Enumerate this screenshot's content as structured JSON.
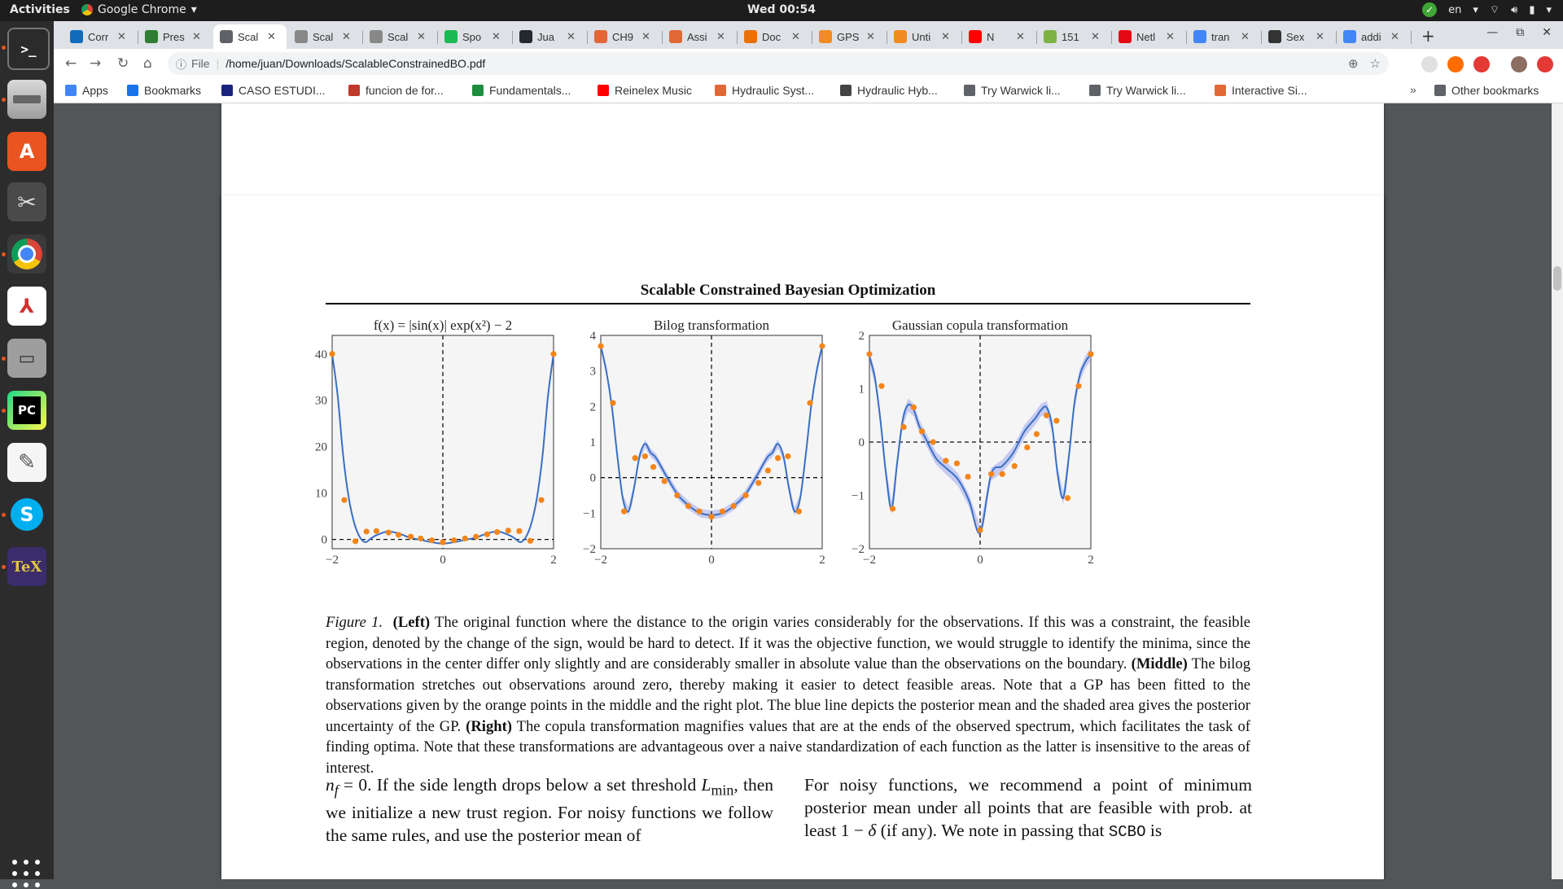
{
  "topbar": {
    "activities": "Activities",
    "app_name": "Google Chrome",
    "clock": "Wed 00:54",
    "keyboard": "en"
  },
  "tabs": [
    {
      "title": "Corr",
      "icon": "outlook-icon",
      "color": "#0f6cbd"
    },
    {
      "title": "Pres",
      "icon": "leaf-icon",
      "color": "#2e7d32"
    },
    {
      "title": "Scal",
      "icon": "globe-icon",
      "color": "#5f6368",
      "active": true
    },
    {
      "title": "Scal",
      "icon": "page-icon",
      "color": "#888888"
    },
    {
      "title": "Scal",
      "icon": "page-icon",
      "color": "#888888"
    },
    {
      "title": "Spo",
      "icon": "spotify-icon",
      "color": "#1db954"
    },
    {
      "title": "Jua",
      "icon": "github-icon",
      "color": "#24292e"
    },
    {
      "title": "CH9",
      "icon": "mathworks-icon",
      "color": "#e16737"
    },
    {
      "title": "Assi",
      "icon": "mathworks-icon",
      "color": "#e16737"
    },
    {
      "title": "Doc",
      "icon": "loading-icon",
      "color": "#e8710a"
    },
    {
      "title": "GPS",
      "icon": "book-icon",
      "color": "#f28b22"
    },
    {
      "title": "Unti",
      "icon": "book-icon",
      "color": "#f28b22"
    },
    {
      "title": "N",
      "icon": "youtube-icon",
      "color": "#ff0000"
    },
    {
      "title": "151",
      "icon": "smile-icon",
      "color": "#7cb342"
    },
    {
      "title": "Netl",
      "icon": "netflix-icon",
      "color": "#e50914"
    },
    {
      "title": "tran",
      "icon": "google-icon",
      "color": "#4285f4"
    },
    {
      "title": "Sex",
      "icon": "tool-icon",
      "color": "#333333"
    },
    {
      "title": "addi",
      "icon": "google-icon",
      "color": "#4285f4"
    }
  ],
  "toolbar": {
    "file_label": "File",
    "url": "/home/juan/Downloads/ScalableConstrainedBO.pdf"
  },
  "bookmarks": [
    {
      "label": "Apps",
      "icon": "apps-grid-icon",
      "color": "#4285f4"
    },
    {
      "label": "Bookmarks",
      "icon": "star-icon",
      "color": "#1a73e8"
    },
    {
      "label": "CASO ESTUDI...",
      "icon": "oup-icon",
      "color": "#1a237e"
    },
    {
      "label": "funcion de for...",
      "icon": "slash-icon",
      "color": "#c0392b"
    },
    {
      "label": "Fundamentals...",
      "icon": "hub-icon",
      "color": "#1e8e3e"
    },
    {
      "label": "Reinelex Music",
      "icon": "youtube-icon",
      "color": "#ff0000"
    },
    {
      "label": "Hydraulic Syst...",
      "icon": "mathworks-icon",
      "color": "#e16737"
    },
    {
      "label": "Hydraulic Hyb...",
      "icon": "epa-icon",
      "color": "#444444"
    },
    {
      "label": "Try Warwick li...",
      "icon": "globe-icon",
      "color": "#5f6368"
    },
    {
      "label": "Try Warwick li...",
      "icon": "globe-icon",
      "color": "#5f6368"
    },
    {
      "label": "Interactive Si...",
      "icon": "mathworks-icon",
      "color": "#e16737"
    }
  ],
  "other_bookmarks": "Other bookmarks",
  "pdf": {
    "running_head": "Scalable Constrained Bayesian Optimization",
    "caption": {
      "fig_label": "Figure 1.",
      "left_bold": "(Left)",
      "left_text": " The original function where the distance to the origin varies considerably for the observations. If this was a constraint, the feasible region, denoted by the change of the sign, would be hard to detect. If it was the objective function, we would struggle to identify the minima, since the observations in the center differ only slightly and are considerably smaller in absolute value than the observations on the boundary. ",
      "middle_bold": "(Middle)",
      "middle_text": " The bilog transformation stretches out observations around zero, thereby making it easier to detect feasible areas. Note that a GP has been fitted to the observations given by the orange points in the middle and the right plot. The blue line depicts the posterior mean and the shaded area gives the posterior uncertainty of the GP. ",
      "right_bold": "(Right)",
      "right_text": " The copula transformation magnifies values that are at the ends of the observed spectrum, which facilitates the task of finding optima. Note that these transformations are advantageous over a naive standardization of each function as the latter is insensitive to the areas of interest."
    },
    "col_left": [
      "n",
      "f",
      " = 0. If the side length drops below a set threshold ",
      "L",
      "min",
      ", then we initialize a new trust region. For noisy functions we follow the same rules, and use the posterior mean of"
    ],
    "col_right_a": "For noisy functions, we recommend a point of minimum posterior mean under all points that are feasible with prob. at least 1 − ",
    "col_right_delta": "δ",
    "col_right_b": " (if any). We note in passing that ",
    "col_right_mono": "SCBO",
    "col_right_c": " is"
  },
  "chart_data": [
    {
      "type": "line",
      "title": "f(x) = |sin(x)| exp(x²) − 2",
      "xlim": [
        -2,
        2
      ],
      "ylim": [
        -2,
        44
      ],
      "xticks": [
        "−2",
        "0",
        "2"
      ],
      "yticks": [
        "0",
        "10",
        "20",
        "30",
        "40"
      ],
      "grid": false,
      "ref_lines": {
        "x": 0,
        "y": 0
      },
      "series": [
        {
          "kind": "curve",
          "x": [
            -2.0,
            -1.9,
            -1.8,
            -1.7,
            -1.6,
            -1.5,
            -1.4,
            -1.3,
            -1.2,
            -1.0,
            -0.8,
            -0.6,
            -0.4,
            -0.2,
            0.0,
            0.2,
            0.4,
            0.6,
            0.8,
            1.0,
            1.2,
            1.3,
            1.4,
            1.5,
            1.6,
            1.7,
            1.8,
            1.9,
            2.0
          ],
          "y": [
            40.0,
            31.0,
            18.0,
            9.0,
            3.5,
            0.5,
            -0.6,
            0.2,
            0.9,
            1.7,
            1.3,
            0.4,
            -0.1,
            -0.6,
            -0.9,
            -0.6,
            -0.1,
            0.4,
            1.3,
            1.7,
            0.9,
            0.2,
            -0.6,
            0.5,
            3.5,
            9.0,
            18.0,
            31.0,
            40.0
          ]
        },
        {
          "kind": "points",
          "x": [
            -2.0,
            -1.78,
            -1.58,
            -1.38,
            -1.2,
            -0.98,
            -0.8,
            -0.58,
            -0.4,
            -0.2,
            0.0,
            0.2,
            0.4,
            0.6,
            0.8,
            0.98,
            1.18,
            1.38,
            1.58,
            1.78,
            2.0
          ],
          "y": [
            40.0,
            8.5,
            -0.4,
            1.7,
            1.8,
            1.5,
            1.0,
            0.6,
            0.2,
            -0.2,
            -0.6,
            -0.2,
            0.2,
            0.6,
            1.1,
            1.6,
            1.9,
            1.8,
            -0.3,
            8.5,
            40.0
          ]
        }
      ]
    },
    {
      "type": "line",
      "title": "Bilog transformation",
      "xlim": [
        -2,
        2
      ],
      "ylim": [
        -2,
        4
      ],
      "xticks": [
        "−2",
        "0",
        "2"
      ],
      "yticks": [
        "−2",
        "−1",
        "0",
        "1",
        "2",
        "3",
        "4"
      ],
      "grid": false,
      "ref_lines": {
        "x": 0,
        "y": 0
      },
      "series": [
        {
          "kind": "curve",
          "x": [
            -2.0,
            -1.9,
            -1.8,
            -1.7,
            -1.6,
            -1.5,
            -1.4,
            -1.3,
            -1.2,
            -1.1,
            -1.0,
            -0.8,
            -0.6,
            -0.4,
            -0.2,
            0.0,
            0.2,
            0.4,
            0.6,
            0.8,
            1.0,
            1.1,
            1.2,
            1.3,
            1.4,
            1.5,
            1.6,
            1.7,
            1.8,
            1.9,
            2.0
          ],
          "y": [
            3.7,
            3.0,
            2.0,
            0.6,
            -0.6,
            -0.95,
            -0.3,
            0.6,
            0.95,
            0.7,
            0.55,
            0.0,
            -0.5,
            -0.8,
            -1.0,
            -1.05,
            -1.0,
            -0.8,
            -0.5,
            0.0,
            0.55,
            0.7,
            0.95,
            0.6,
            -0.3,
            -0.95,
            -0.6,
            0.6,
            2.0,
            3.0,
            3.7
          ]
        },
        {
          "kind": "band_halfwidth",
          "value": 0.12
        },
        {
          "kind": "points",
          "x": [
            -2.0,
            -1.78,
            -1.58,
            -1.38,
            -1.2,
            -1.05,
            -0.85,
            -0.62,
            -0.42,
            -0.22,
            0.0,
            0.2,
            0.4,
            0.62,
            0.85,
            1.02,
            1.2,
            1.38,
            1.58,
            1.78,
            2.0
          ],
          "y": [
            3.7,
            2.1,
            -0.95,
            0.55,
            0.6,
            0.3,
            -0.1,
            -0.5,
            -0.8,
            -0.95,
            -1.1,
            -0.95,
            -0.8,
            -0.5,
            -0.15,
            0.2,
            0.55,
            0.6,
            -0.95,
            2.1,
            3.7
          ]
        }
      ]
    },
    {
      "type": "line",
      "title": "Gaussian copula transformation",
      "xlim": [
        -2,
        2
      ],
      "ylim": [
        -2,
        2
      ],
      "xticks": [
        "−2",
        "0",
        "2"
      ],
      "yticks": [
        "−2",
        "−1",
        "0",
        "1",
        "2"
      ],
      "grid": false,
      "ref_lines": {
        "x": 0,
        "y": 0
      },
      "series": [
        {
          "kind": "curve",
          "x": [
            -2.0,
            -1.9,
            -1.8,
            -1.7,
            -1.6,
            -1.5,
            -1.4,
            -1.3,
            -1.2,
            -1.1,
            -1.0,
            -0.8,
            -0.6,
            -0.4,
            -0.2,
            0.0,
            0.2,
            0.4,
            0.6,
            0.8,
            1.0,
            1.1,
            1.2,
            1.3,
            1.4,
            1.5,
            1.6,
            1.7,
            1.8,
            1.9,
            2.0
          ],
          "y": [
            1.6,
            1.2,
            0.4,
            -0.6,
            -1.25,
            -0.4,
            0.4,
            0.7,
            0.6,
            0.3,
            0.1,
            -0.3,
            -0.5,
            -0.7,
            -1.1,
            -1.7,
            -0.6,
            -0.45,
            -0.2,
            0.2,
            0.45,
            0.6,
            0.65,
            0.3,
            -0.6,
            -1.05,
            -0.3,
            0.7,
            1.25,
            1.5,
            1.65
          ]
        },
        {
          "kind": "band_halfwidth",
          "value": 0.12
        },
        {
          "kind": "points",
          "x": [
            -2.0,
            -1.78,
            -1.58,
            -1.38,
            -1.2,
            -1.05,
            -0.85,
            -0.62,
            -0.42,
            -0.22,
            0.0,
            0.2,
            0.4,
            0.62,
            0.85,
            1.02,
            1.2,
            1.38,
            1.58,
            1.78,
            2.0
          ],
          "y": [
            1.65,
            1.05,
            -1.25,
            0.28,
            0.65,
            0.2,
            0.0,
            -0.35,
            -0.4,
            -0.65,
            -1.65,
            -0.6,
            -0.6,
            -0.45,
            -0.1,
            0.15,
            0.5,
            0.4,
            -1.05,
            1.05,
            1.65
          ]
        }
      ]
    }
  ]
}
